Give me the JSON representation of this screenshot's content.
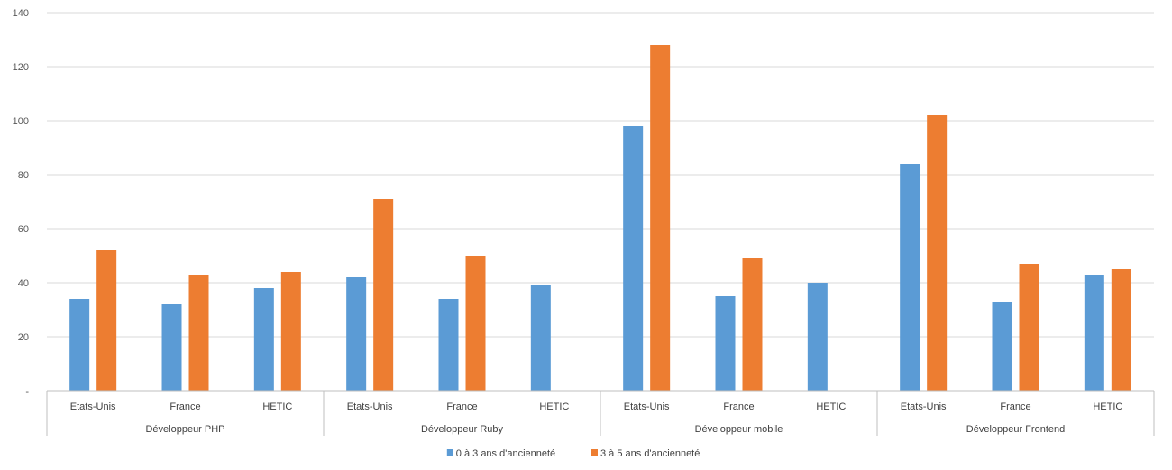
{
  "chart_data": {
    "type": "bar",
    "title": "",
    "xlabel": "",
    "ylabel": "",
    "ylim": [
      0,
      140
    ],
    "y_ticks": [
      "-",
      "20",
      "40",
      "60",
      "80",
      "100",
      "120",
      "140"
    ],
    "grid": true,
    "legend_position": "bottom",
    "groups": [
      {
        "label": "Développeur PHP",
        "categories": [
          "Etats-Unis",
          "France",
          "HETIC"
        ]
      },
      {
        "label": "Développeur Ruby",
        "categories": [
          "Etats-Unis",
          "France",
          "HETIC"
        ]
      },
      {
        "label": "Développeur mobile",
        "categories": [
          "Etats-Unis",
          "France",
          "HETIC"
        ]
      },
      {
        "label": "Développeur Frontend",
        "categories": [
          "Etats-Unis",
          "France",
          "HETIC"
        ]
      }
    ],
    "series": [
      {
        "name": "0 à 3 ans d'ancienneté",
        "color": "#5b9bd5",
        "values": [
          34,
          32,
          38,
          42,
          34,
          39,
          98,
          35,
          40,
          84,
          33,
          43
        ]
      },
      {
        "name": "3 à 5 ans d'ancienneté",
        "color": "#ed7d31",
        "values": [
          52,
          43,
          44,
          71,
          50,
          null,
          128,
          49,
          null,
          102,
          47,
          45
        ]
      }
    ]
  }
}
